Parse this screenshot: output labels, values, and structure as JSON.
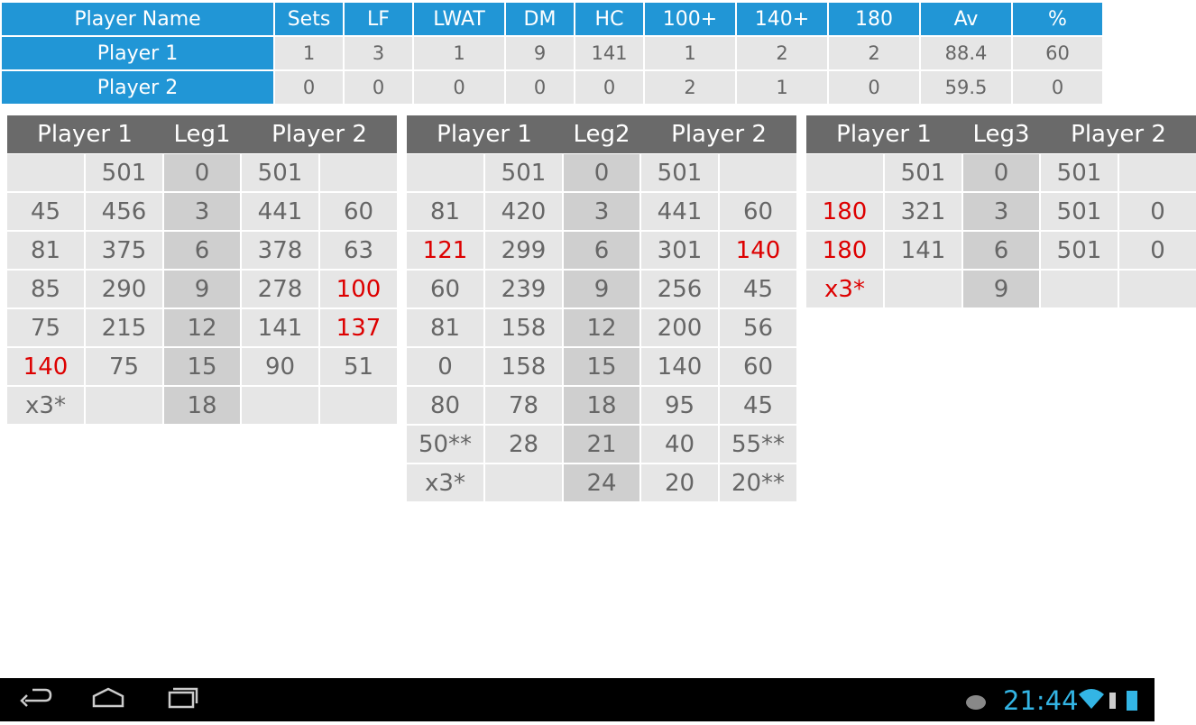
{
  "summary": {
    "header": [
      "Player Name",
      "Sets",
      "LF",
      "LWAT",
      "DM",
      "HC",
      "100+",
      "140+",
      "180",
      "Av",
      "%"
    ],
    "rows": [
      [
        "Player 1",
        1,
        3,
        1,
        9,
        141,
        1,
        2,
        2,
        88.4,
        60
      ],
      [
        "Player 2",
        0,
        0,
        0,
        0,
        0,
        2,
        1,
        0,
        59.5,
        0
      ]
    ]
  },
  "legs": [
    {
      "player1": "Player 1",
      "leg": "Leg1",
      "player2": "Player 2",
      "rows": [
        [
          null,
          "501",
          "0",
          "501",
          null
        ],
        [
          "45",
          "456",
          "3",
          "441",
          "60"
        ],
        [
          "81",
          "375",
          "6",
          "378",
          "63"
        ],
        [
          "85",
          "290",
          "9",
          "278",
          {
            "text": "100",
            "color": "#dd0000"
          }
        ],
        [
          "75",
          "215",
          "12",
          "141",
          {
            "text": "137",
            "color": "#dd0000"
          }
        ],
        [
          {
            "text": "140",
            "color": "#dd0000"
          },
          "75",
          "15",
          "90",
          "51"
        ],
        [
          "x3*",
          null,
          "18",
          null,
          null
        ]
      ]
    },
    {
      "player1": "Player 1",
      "leg": "Leg2",
      "player2": "Player 2",
      "rows": [
        [
          null,
          "501",
          "0",
          "501",
          null
        ],
        [
          "81",
          "420",
          "3",
          "441",
          "60"
        ],
        [
          {
            "text": "121",
            "color": "#dd0000"
          },
          "299",
          "6",
          "301",
          {
            "text": "140",
            "color": "#dd0000"
          }
        ],
        [
          "60",
          "239",
          "9",
          "256",
          "45"
        ],
        [
          "81",
          "158",
          "12",
          "200",
          "56"
        ],
        [
          "0",
          "158",
          "15",
          "140",
          "60"
        ],
        [
          "80",
          "78",
          "18",
          "95",
          "45"
        ],
        [
          "50**",
          "28",
          "21",
          "40",
          "55**"
        ],
        [
          "x3*",
          null,
          "24",
          "20",
          "20**"
        ]
      ]
    },
    {
      "player1": "Player 1",
      "leg": "Leg3",
      "player2": "Player 2",
      "rows": [
        [
          null,
          "501",
          "0",
          "501",
          null
        ],
        [
          {
            "text": "180",
            "color": "#dd0000"
          },
          "321",
          "3",
          "501",
          "0"
        ],
        [
          {
            "text": "180",
            "color": "#dd0000"
          },
          "141",
          "6",
          "501",
          "0"
        ],
        [
          {
            "text": "x3*",
            "color": "#dd0000"
          },
          null,
          "9",
          null,
          null
        ]
      ]
    }
  ],
  "status": {
    "clock": "21:44"
  }
}
